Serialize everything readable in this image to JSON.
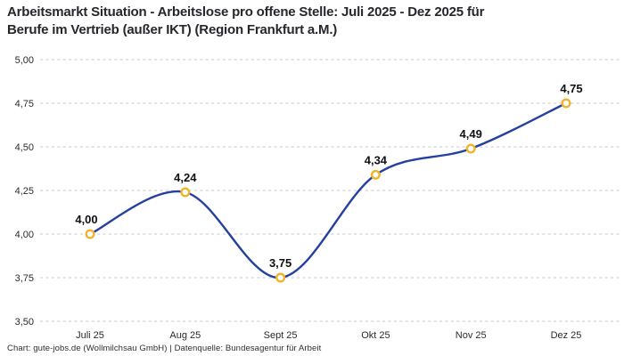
{
  "header": {
    "title_lines": [
      "Arbeitsmarkt Situation - Arbeitslose pro offene Stelle: Juli 2025 - Dez 2025 für",
      "Berufe im Vertrieb (außer IKT) (Region Frankfurt a.M.)"
    ]
  },
  "footer": {
    "credit": "Chart: gute-jobs.de (Wollmilchsau GmbH) | Datenquelle: Bundesagentur für Arbeit"
  },
  "chart_data": {
    "type": "line",
    "title": "Arbeitsmarkt Situation - Arbeitslose pro offene Stelle: Juli 2025 - Dez 2025 für Berufe im Vertrieb (außer IKT) (Region Frankfurt a.M.)",
    "categories": [
      "Juli 25",
      "Aug 25",
      "Sept 25",
      "Okt 25",
      "Nov 25",
      "Dez 25"
    ],
    "values": [
      4.0,
      4.24,
      3.75,
      4.34,
      4.49,
      4.75
    ],
    "point_labels": [
      "4,00",
      "4,24",
      "3,75",
      "4,34",
      "4,49",
      "4,75"
    ],
    "ylim": [
      3.5,
      5.0
    ],
    "yticks": [
      5.0,
      4.75,
      4.5,
      4.25,
      4.0,
      3.75,
      3.5
    ],
    "ytick_labels": [
      "5,00",
      "4,75",
      "4,50",
      "4,25",
      "4,00",
      "3,75",
      "3,50"
    ],
    "xlabel": "",
    "ylabel": "",
    "grid": "horizontal-dashed",
    "legend": "none",
    "line_style": "smooth",
    "colors": {
      "line": "#2540a0",
      "marker_ring": "#f2b32a",
      "marker_fill": "#ffffff",
      "grid": "#c9c9c9",
      "point_label": "#101014",
      "tick_label": "#2b2b2b"
    }
  }
}
